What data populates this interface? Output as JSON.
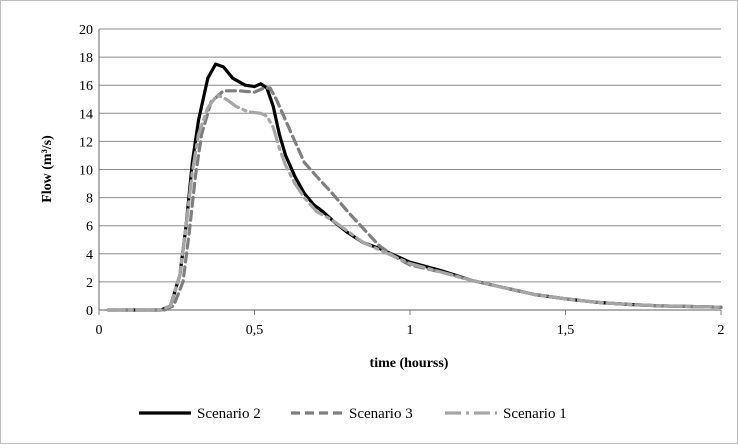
{
  "chart_data": {
    "type": "line",
    "title": "",
    "xlabel": "time (hourss)",
    "ylabel": "Flow (m³/s)",
    "xlim": [
      0,
      2
    ],
    "ylim": [
      0,
      20
    ],
    "x_ticks": [
      0,
      0.5,
      1,
      1.5,
      2
    ],
    "x_tick_labels": [
      "0",
      "0,5",
      "1",
      "1,5",
      "2"
    ],
    "y_ticks": [
      0,
      2,
      4,
      6,
      8,
      10,
      12,
      14,
      16,
      18,
      20
    ],
    "y_tick_labels": [
      "0",
      "2",
      "4",
      "6",
      "8",
      "10",
      "12",
      "14",
      "16",
      "18",
      "20"
    ],
    "grid": "horizontal",
    "legend_position": "bottom",
    "series": [
      {
        "name": "Scenario 2",
        "color": "#000000",
        "dash": "solid",
        "points": [
          [
            0.03,
            0
          ],
          [
            0.2,
            0
          ],
          [
            0.23,
            0.3
          ],
          [
            0.26,
            2.5
          ],
          [
            0.28,
            6
          ],
          [
            0.3,
            10.5
          ],
          [
            0.32,
            13.5
          ],
          [
            0.35,
            16.5
          ],
          [
            0.375,
            17.5
          ],
          [
            0.4,
            17.3
          ],
          [
            0.43,
            16.5
          ],
          [
            0.47,
            16
          ],
          [
            0.5,
            15.9
          ],
          [
            0.52,
            16.1
          ],
          [
            0.54,
            15.8
          ],
          [
            0.56,
            14.5
          ],
          [
            0.58,
            12.5
          ],
          [
            0.6,
            11
          ],
          [
            0.63,
            9.5
          ],
          [
            0.66,
            8.3
          ],
          [
            0.69,
            7.5
          ],
          [
            0.72,
            7
          ],
          [
            0.76,
            6.2
          ],
          [
            0.8,
            5.5
          ],
          [
            0.85,
            4.8
          ],
          [
            0.9,
            4.4
          ],
          [
            0.95,
            3.9
          ],
          [
            1,
            3.4
          ],
          [
            1.1,
            2.8
          ],
          [
            1.2,
            2.1
          ],
          [
            1.3,
            1.6
          ],
          [
            1.4,
            1.1
          ],
          [
            1.5,
            0.8
          ],
          [
            1.6,
            0.55
          ],
          [
            1.7,
            0.4
          ],
          [
            1.8,
            0.3
          ],
          [
            1.9,
            0.25
          ],
          [
            2,
            0.2
          ]
        ]
      },
      {
        "name": "Scenario 3",
        "color": "#7f7f7f",
        "dash": "dashed",
        "points": [
          [
            0.03,
            0
          ],
          [
            0.21,
            0
          ],
          [
            0.24,
            0.3
          ],
          [
            0.27,
            2
          ],
          [
            0.29,
            5.5
          ],
          [
            0.31,
            9.5
          ],
          [
            0.33,
            12.5
          ],
          [
            0.36,
            14.8
          ],
          [
            0.4,
            15.6
          ],
          [
            0.45,
            15.6
          ],
          [
            0.5,
            15.5
          ],
          [
            0.53,
            15.8
          ],
          [
            0.55,
            15.8
          ],
          [
            0.57,
            15
          ],
          [
            0.6,
            13.5
          ],
          [
            0.63,
            12
          ],
          [
            0.66,
            10.5
          ],
          [
            0.7,
            9.5
          ],
          [
            0.75,
            8.3
          ],
          [
            0.8,
            7
          ],
          [
            0.85,
            5.8
          ],
          [
            0.9,
            4.6
          ],
          [
            0.95,
            3.8
          ],
          [
            1,
            3.2
          ],
          [
            1.1,
            2.7
          ],
          [
            1.2,
            2.1
          ],
          [
            1.3,
            1.6
          ],
          [
            1.4,
            1.1
          ],
          [
            1.5,
            0.8
          ],
          [
            1.6,
            0.55
          ],
          [
            1.7,
            0.4
          ],
          [
            1.8,
            0.3
          ],
          [
            1.9,
            0.25
          ],
          [
            2,
            0.2
          ]
        ]
      },
      {
        "name": "Scenario 1",
        "color": "#a6a6a6",
        "dash": "dashdot",
        "points": [
          [
            0.03,
            0
          ],
          [
            0.2,
            0
          ],
          [
            0.23,
            0.3
          ],
          [
            0.26,
            2.5
          ],
          [
            0.28,
            6
          ],
          [
            0.3,
            9.8
          ],
          [
            0.32,
            12.5
          ],
          [
            0.35,
            14.4
          ],
          [
            0.38,
            15.3
          ],
          [
            0.41,
            15
          ],
          [
            0.44,
            14.5
          ],
          [
            0.48,
            14.1
          ],
          [
            0.52,
            14
          ],
          [
            0.54,
            13.8
          ],
          [
            0.56,
            13
          ],
          [
            0.58,
            11.5
          ],
          [
            0.6,
            10.3
          ],
          [
            0.63,
            9
          ],
          [
            0.66,
            8
          ],
          [
            0.7,
            7
          ],
          [
            0.75,
            6.4
          ],
          [
            0.8,
            5.6
          ],
          [
            0.85,
            4.8
          ],
          [
            0.9,
            4.3
          ],
          [
            0.95,
            3.8
          ],
          [
            1,
            3.3
          ],
          [
            1.1,
            2.7
          ],
          [
            1.2,
            2.1
          ],
          [
            1.3,
            1.6
          ],
          [
            1.4,
            1.1
          ],
          [
            1.5,
            0.8
          ],
          [
            1.6,
            0.55
          ],
          [
            1.7,
            0.4
          ],
          [
            1.8,
            0.3
          ],
          [
            1.9,
            0.25
          ],
          [
            2,
            0.2
          ]
        ]
      }
    ]
  }
}
